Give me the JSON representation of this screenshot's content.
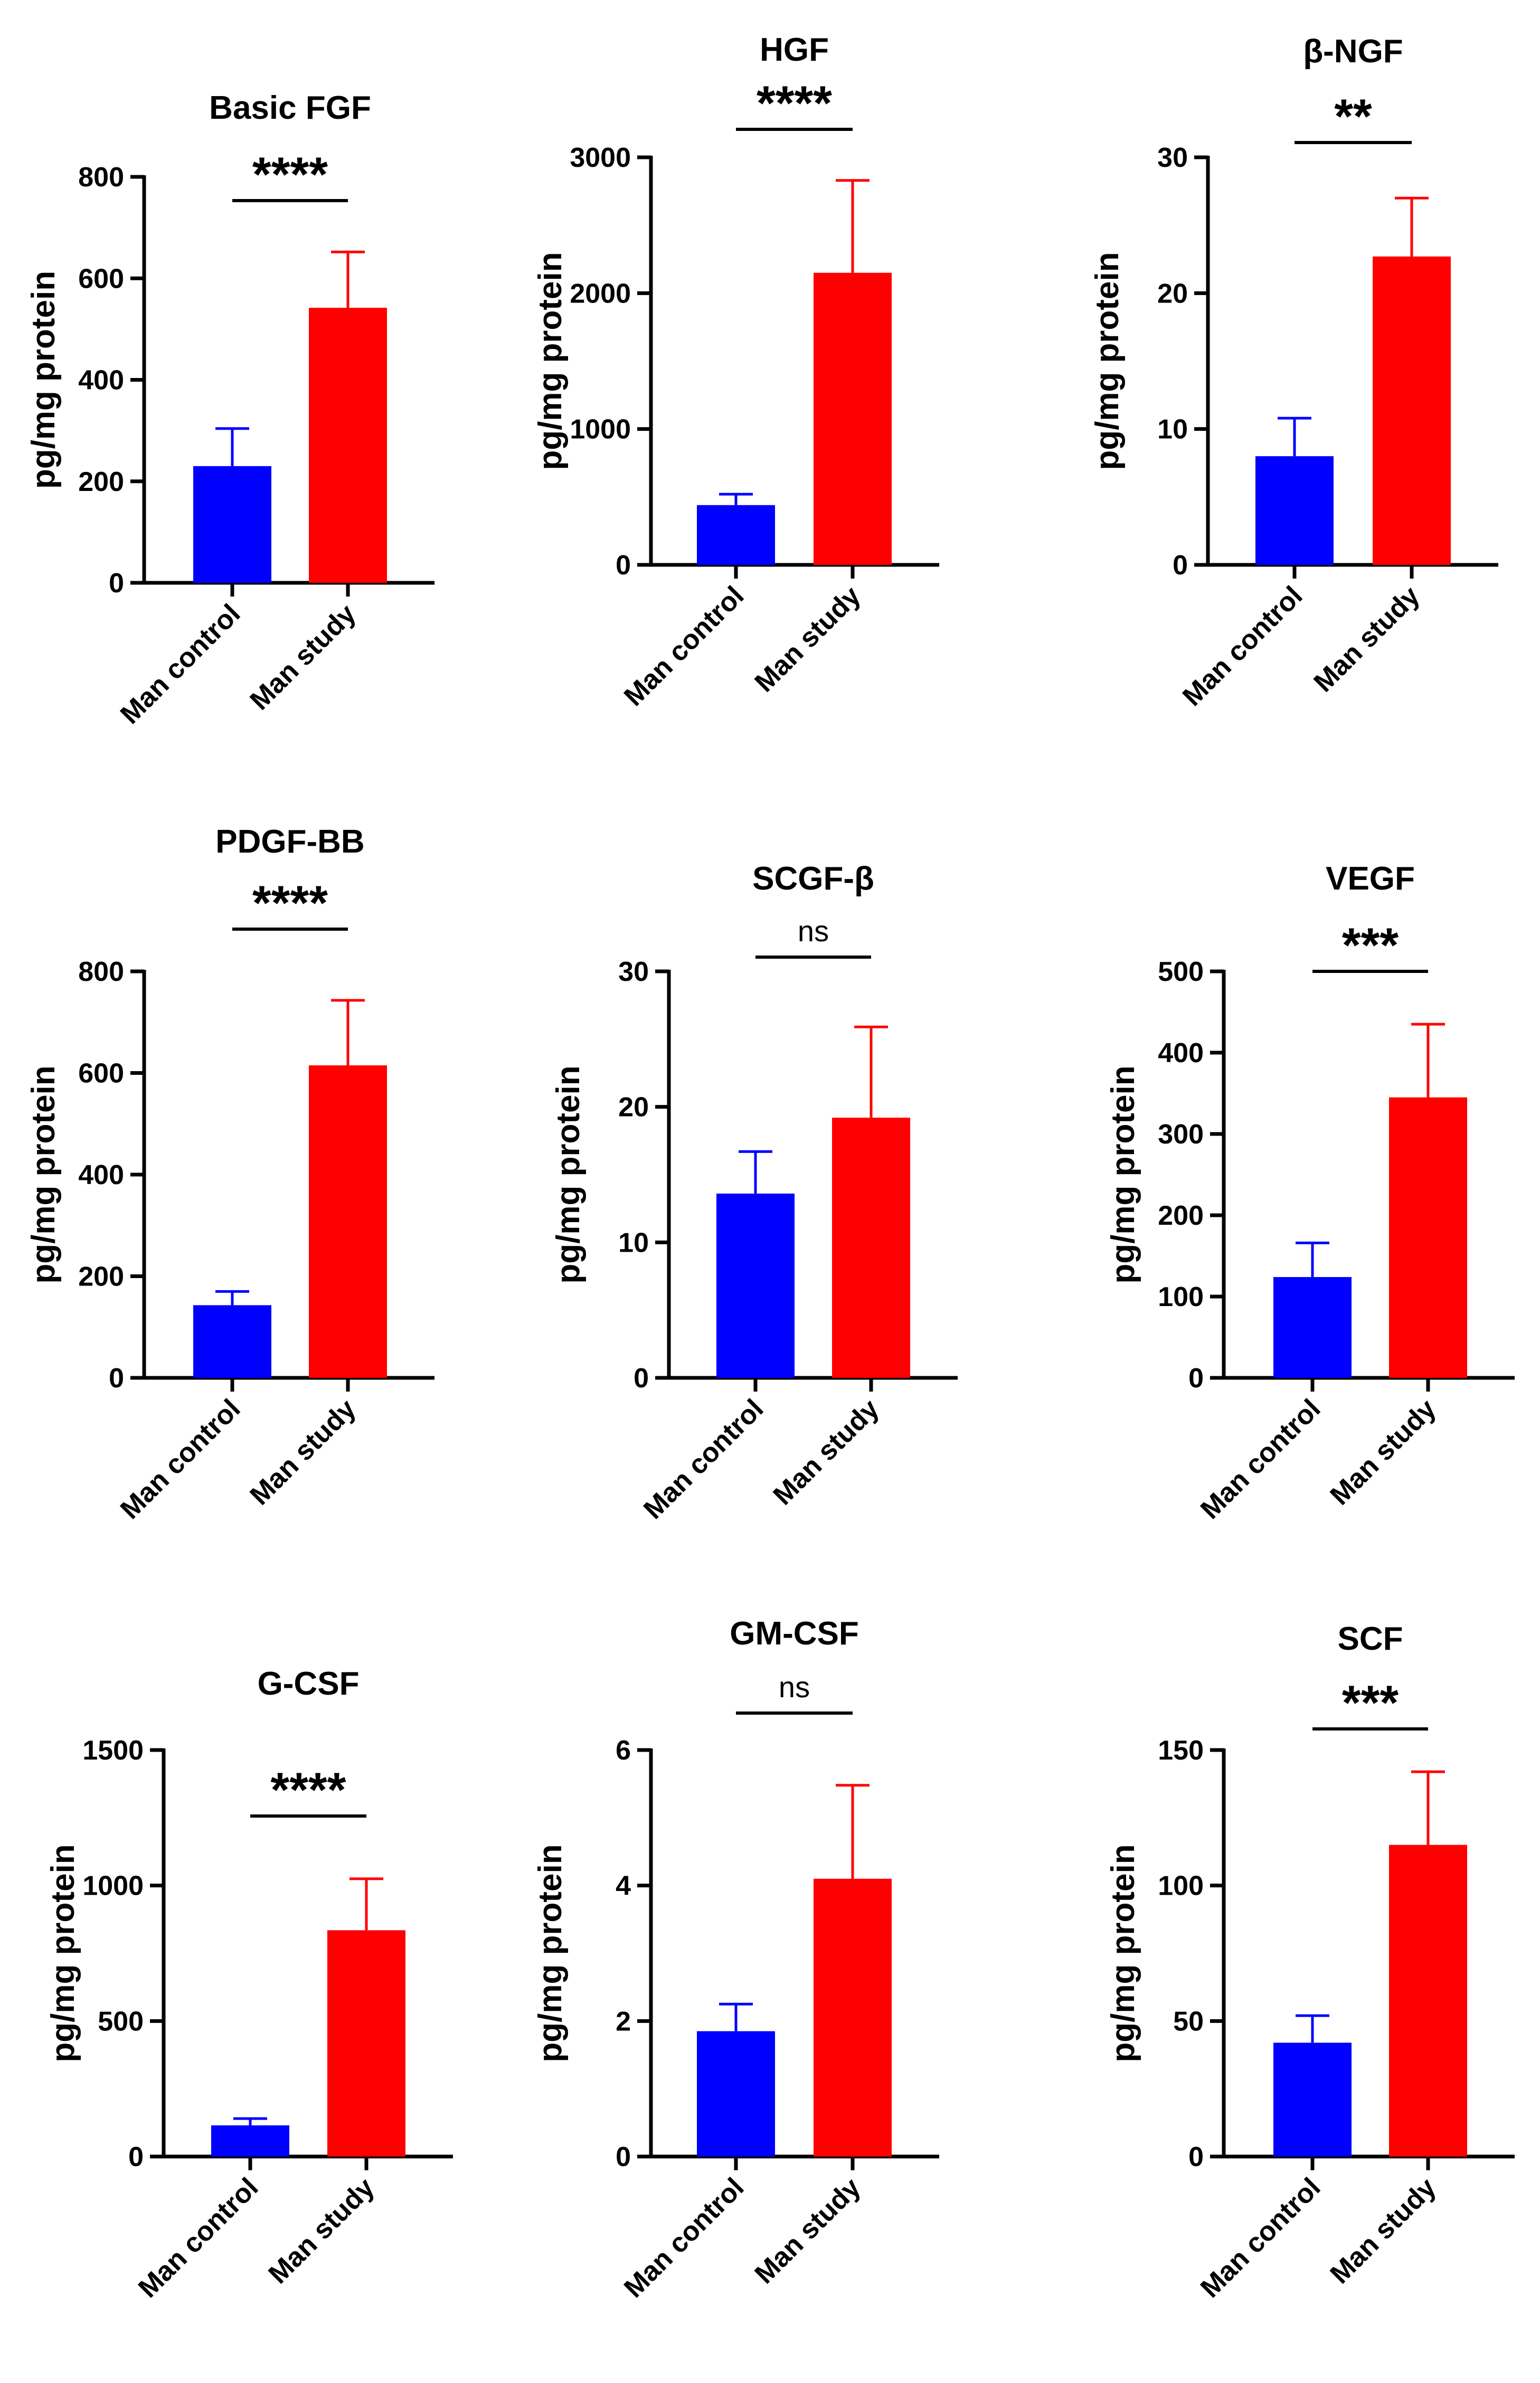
{
  "chart_data": [
    {
      "type": "bar",
      "title": "Basic FGF",
      "ylabel": "pg/mg protein",
      "xlabel": "",
      "categories": [
        "Man control",
        "Man study"
      ],
      "values": [
        230,
        542
      ],
      "errors": [
        74,
        110
      ],
      "colors": [
        "#0000ff",
        "#ff0000"
      ],
      "ylim": [
        0,
        800
      ],
      "yticks": [
        0,
        200,
        400,
        600,
        800
      ],
      "significance": "****"
    },
    {
      "type": "bar",
      "title": "HGF",
      "ylabel": "pg/mg protein",
      "xlabel": "",
      "categories": [
        "Man control",
        "Man study"
      ],
      "values": [
        440,
        2150
      ],
      "errors": [
        80,
        680
      ],
      "colors": [
        "#0000ff",
        "#ff0000"
      ],
      "ylim": [
        0,
        3000
      ],
      "yticks": [
        0,
        1000,
        2000,
        3000
      ],
      "significance": "****"
    },
    {
      "type": "bar",
      "title": "β-NGF",
      "ylabel": "pg/mg protein",
      "xlabel": "",
      "categories": [
        "Man control",
        "Man study"
      ],
      "values": [
        8,
        22.7
      ],
      "errors": [
        2.8,
        4.3
      ],
      "colors": [
        "#0000ff",
        "#ff0000"
      ],
      "ylim": [
        0,
        30
      ],
      "yticks": [
        0,
        10,
        20,
        30
      ],
      "significance": "**"
    },
    {
      "type": "bar",
      "title": "PDGF-BB",
      "ylabel": "pg/mg protein",
      "xlabel": "",
      "categories": [
        "Man control",
        "Man study"
      ],
      "values": [
        143,
        615
      ],
      "errors": [
        27,
        128
      ],
      "colors": [
        "#0000ff",
        "#ff0000"
      ],
      "ylim": [
        0,
        800
      ],
      "yticks": [
        0,
        200,
        400,
        600,
        800
      ],
      "significance": "****"
    },
    {
      "type": "bar",
      "title": "SCGF-β",
      "ylabel": "pg/mg protein",
      "xlabel": "",
      "categories": [
        "Man control",
        "Man study"
      ],
      "values": [
        13.6,
        19.2
      ],
      "errors": [
        3.1,
        6.7
      ],
      "colors": [
        "#0000ff",
        "#ff0000"
      ],
      "ylim": [
        0,
        30
      ],
      "yticks": [
        0,
        10,
        20,
        30
      ],
      "significance": "ns"
    },
    {
      "type": "bar",
      "title": "VEGF",
      "ylabel": "pg/mg protein",
      "xlabel": "",
      "categories": [
        "Man control",
        "Man study"
      ],
      "values": [
        124,
        345
      ],
      "errors": [
        42,
        90
      ],
      "colors": [
        "#0000ff",
        "#ff0000"
      ],
      "ylim": [
        0,
        500
      ],
      "yticks": [
        0,
        100,
        200,
        300,
        400,
        500
      ],
      "significance": "***"
    },
    {
      "type": "bar",
      "title": "G-CSF",
      "ylabel": "pg/mg protein",
      "xlabel": "",
      "categories": [
        "Man control",
        "Man study"
      ],
      "values": [
        115,
        835
      ],
      "errors": [
        25,
        190
      ],
      "colors": [
        "#0000ff",
        "#ff0000"
      ],
      "ylim": [
        0,
        1500
      ],
      "yticks": [
        0,
        500,
        1000,
        1500
      ],
      "significance": "****"
    },
    {
      "type": "bar",
      "title": "GM-CSF",
      "ylabel": "pg/mg protein",
      "xlabel": "",
      "categories": [
        "Man control",
        "Man study"
      ],
      "values": [
        1.85,
        4.1
      ],
      "errors": [
        0.4,
        1.38
      ],
      "colors": [
        "#0000ff",
        "#ff0000"
      ],
      "ylim": [
        0,
        6
      ],
      "yticks": [
        0,
        2,
        4,
        6
      ],
      "significance": "ns"
    },
    {
      "type": "bar",
      "title": "SCF",
      "ylabel": "pg/mg protein",
      "xlabel": "",
      "categories": [
        "Man control",
        "Man study"
      ],
      "values": [
        42,
        115
      ],
      "errors": [
        10,
        27
      ],
      "colors": [
        "#0000ff",
        "#ff0000"
      ],
      "ylim": [
        0,
        150
      ],
      "yticks": [
        0,
        50,
        100,
        150
      ],
      "significance": "***"
    }
  ]
}
